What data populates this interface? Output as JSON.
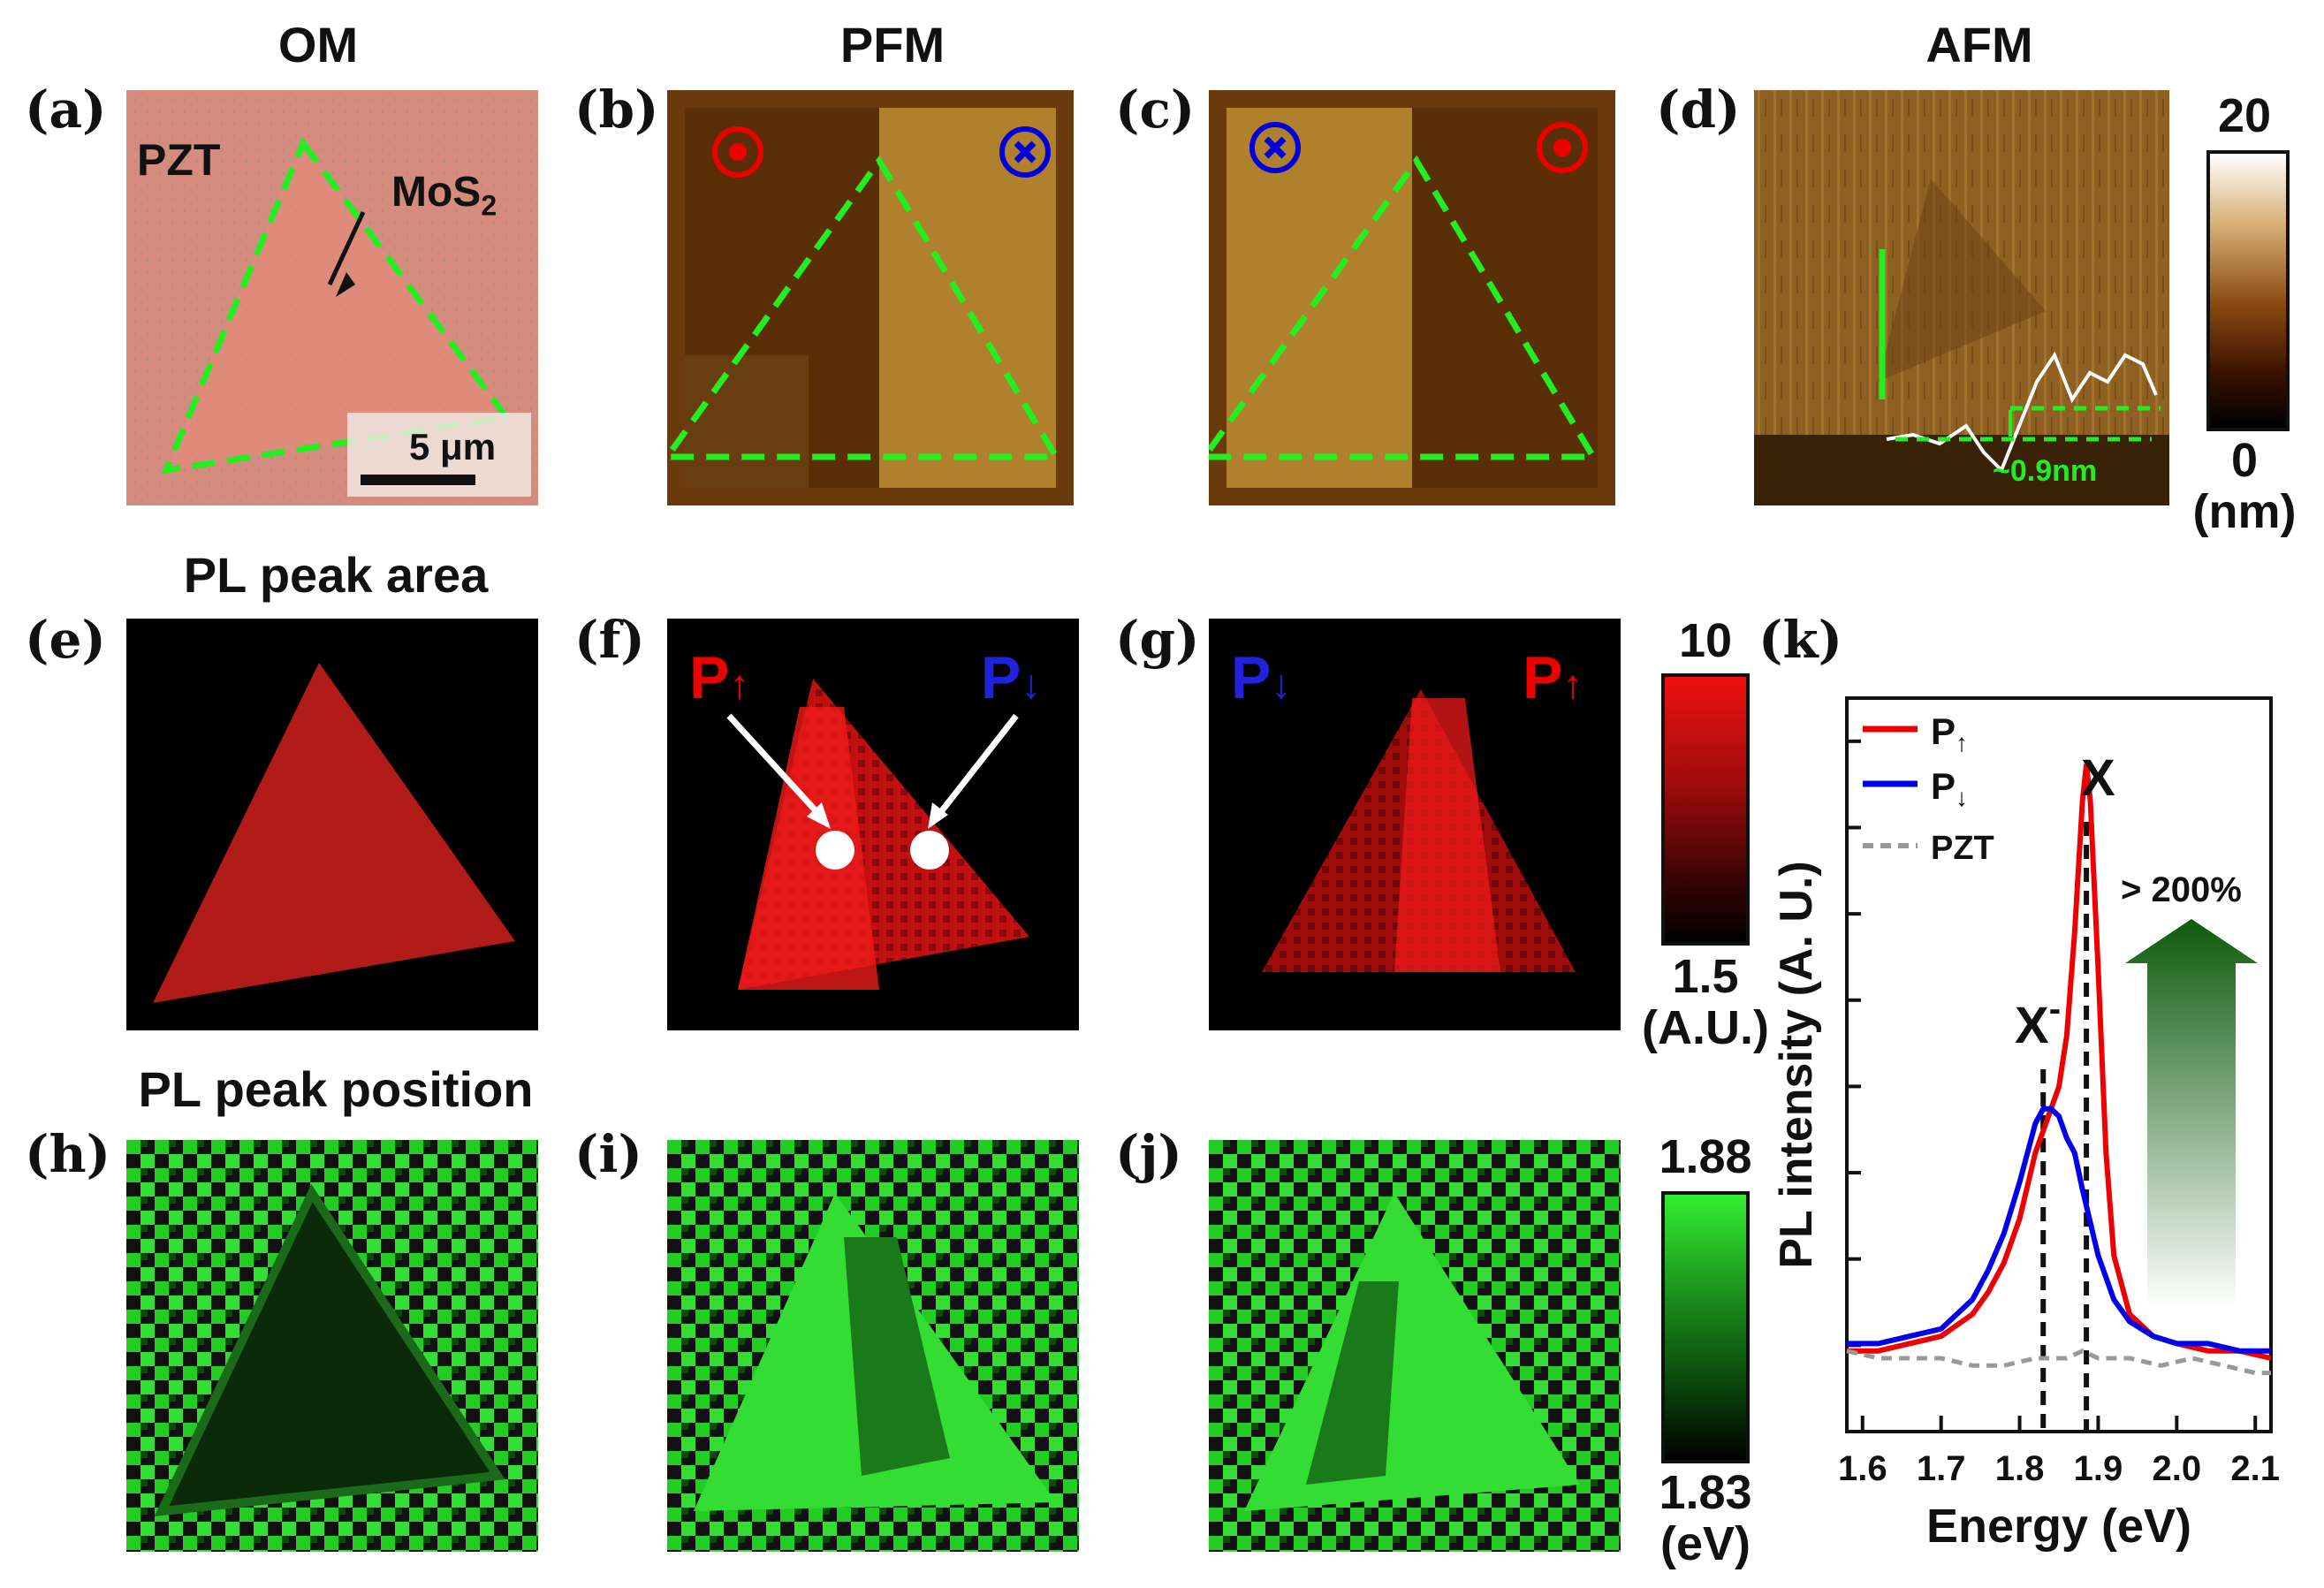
{
  "headers": {
    "om": "OM",
    "pfm": "PFM",
    "afm": "AFM",
    "pl_area": "PL peak area",
    "pl_position": "PL peak position"
  },
  "panel_labels": {
    "a": "(a)",
    "b": "(b)",
    "c": "(c)",
    "d": "(d)",
    "e": "(e)",
    "f": "(f)",
    "g": "(g)",
    "h": "(h)",
    "i": "(i)",
    "j": "(j)",
    "k": "(k)"
  },
  "annotations": {
    "pzt": "PZT",
    "mos2": "MoS",
    "mos2_sub": "2",
    "scale_bar": "5 μm",
    "afm_step": "~0.9nm",
    "p_up_main": "P",
    "p_up_arrow": "↑",
    "p_down_main": "P",
    "p_down_arrow": "↓"
  },
  "colorbars": {
    "afm": {
      "max": "20",
      "min": "0",
      "unit": "(nm)"
    },
    "pl_area": {
      "max": "10",
      "min": "1.5",
      "unit": "(A.U.)"
    },
    "pl_position": {
      "max": "1.88",
      "min": "1.83",
      "unit": "(eV)"
    }
  },
  "colors": {
    "red": "#ee0000",
    "blue": "#0000dd",
    "green_dash": "#22ee22",
    "pfm_dark": "#5a2e06",
    "pfm_light": "#b8862e",
    "om_bg": "#d28a7c"
  },
  "chart_data": {
    "type": "line",
    "title": "",
    "xlabel": "Energy (eV)",
    "ylabel": "PL intensity (A. U.)",
    "xlim": [
      1.58,
      2.12
    ],
    "ylim": [
      0,
      1.0
    ],
    "x_ticks": [
      "1.6",
      "1.7",
      "1.8",
      "1.9",
      "2.0",
      "2.1"
    ],
    "series": [
      {
        "name": "P",
        "sub": "↑",
        "color": "#ee0000",
        "style": "solid",
        "x": [
          1.58,
          1.62,
          1.66,
          1.7,
          1.74,
          1.76,
          1.78,
          1.8,
          1.82,
          1.84,
          1.85,
          1.86,
          1.87,
          1.88,
          1.885,
          1.89,
          1.9,
          1.91,
          1.92,
          1.94,
          1.97,
          2.0,
          2.04,
          2.08,
          2.12
        ],
        "values": [
          0.11,
          0.11,
          0.12,
          0.13,
          0.16,
          0.19,
          0.23,
          0.29,
          0.38,
          0.44,
          0.47,
          0.54,
          0.68,
          0.86,
          0.91,
          0.86,
          0.63,
          0.38,
          0.24,
          0.16,
          0.13,
          0.12,
          0.11,
          0.11,
          0.1
        ]
      },
      {
        "name": "P",
        "sub": "↓",
        "color": "#0000ee",
        "style": "solid",
        "x": [
          1.58,
          1.62,
          1.66,
          1.7,
          1.74,
          1.76,
          1.78,
          1.8,
          1.82,
          1.83,
          1.84,
          1.85,
          1.86,
          1.87,
          1.88,
          1.9,
          1.92,
          1.94,
          1.97,
          2.0,
          2.04,
          2.08,
          2.12
        ],
        "values": [
          0.12,
          0.12,
          0.13,
          0.14,
          0.18,
          0.22,
          0.27,
          0.34,
          0.42,
          0.44,
          0.44,
          0.43,
          0.4,
          0.38,
          0.33,
          0.24,
          0.18,
          0.15,
          0.13,
          0.12,
          0.12,
          0.11,
          0.11
        ]
      },
      {
        "name": "PZT",
        "sub": "",
        "color": "#999999",
        "style": "dashed",
        "x": [
          1.58,
          1.62,
          1.66,
          1.7,
          1.74,
          1.78,
          1.82,
          1.86,
          1.88,
          1.9,
          1.94,
          1.98,
          2.02,
          2.06,
          2.1,
          2.12
        ],
        "values": [
          0.11,
          0.1,
          0.1,
          0.1,
          0.09,
          0.09,
          0.1,
          0.1,
          0.11,
          0.1,
          0.1,
          0.09,
          0.1,
          0.09,
          0.08,
          0.08
        ]
      }
    ],
    "annotations": {
      "x_peak": "X",
      "trion_peak": "X",
      "trion_sup": "-",
      "enhancement": "> 200%"
    },
    "vlines": [
      1.83,
      1.885
    ]
  }
}
